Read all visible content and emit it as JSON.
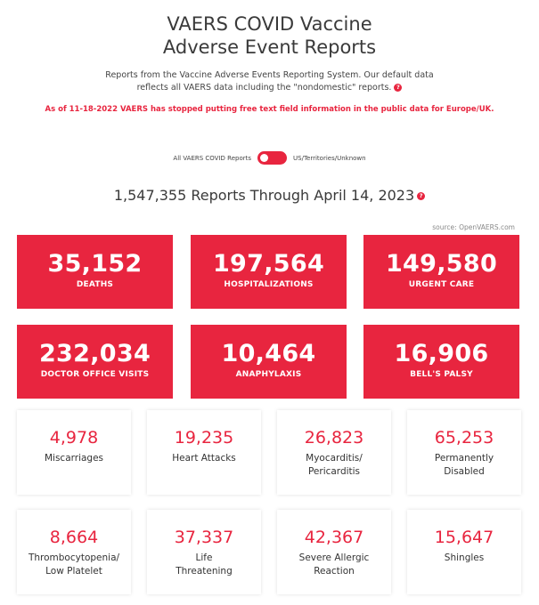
{
  "header": {
    "title_line1": "VAERS COVID Vaccine",
    "title_line2": "Adverse Event Reports",
    "desc_line1": "Reports from the Vaccine Adverse Events Reporting System. Our default data",
    "desc_line2": "reflects all VAERS data including the \"nondomestic\" reports.",
    "help": "?",
    "notice": "As of 11-18-2022 VAERS has stopped putting free text field information in the public data for Europe/UK."
  },
  "toggle": {
    "left_label": "All VAERS COVID Reports",
    "right_label": "US/Territories/Unknown"
  },
  "summary": {
    "headline": "1,547,355 Reports Through April 14, 2023",
    "source": "source: OpenVAERS.com"
  },
  "red_cards": [
    {
      "value": "35,152",
      "label": "DEATHS"
    },
    {
      "value": "197,564",
      "label": "HOSPITALIZATIONS"
    },
    {
      "value": "149,580",
      "label": "URGENT CARE"
    },
    {
      "value": "232,034",
      "label": "DOCTOR OFFICE VISITS"
    },
    {
      "value": "10,464",
      "label": "ANAPHYLAXIS"
    },
    {
      "value": "16,906",
      "label": "BELL'S PALSY"
    }
  ],
  "white_cards": [
    {
      "value": "4,978",
      "line1": "Miscarriages",
      "line2": ""
    },
    {
      "value": "19,235",
      "line1": "Heart Attacks",
      "line2": ""
    },
    {
      "value": "26,823",
      "line1": "Myocarditis/",
      "line2": "Pericarditis"
    },
    {
      "value": "65,253",
      "line1": "Permanently",
      "line2": "Disabled"
    },
    {
      "value": "8,664",
      "line1": "Thrombocytopenia/",
      "line2": "Low Platelet"
    },
    {
      "value": "37,337",
      "line1": "Life",
      "line2": "Threatening"
    },
    {
      "value": "42,367",
      "line1": "Severe Allergic",
      "line2": "Reaction"
    },
    {
      "value": "15,647",
      "line1": "Shingles",
      "line2": ""
    }
  ],
  "colors": {
    "accent": "#e8253f"
  }
}
